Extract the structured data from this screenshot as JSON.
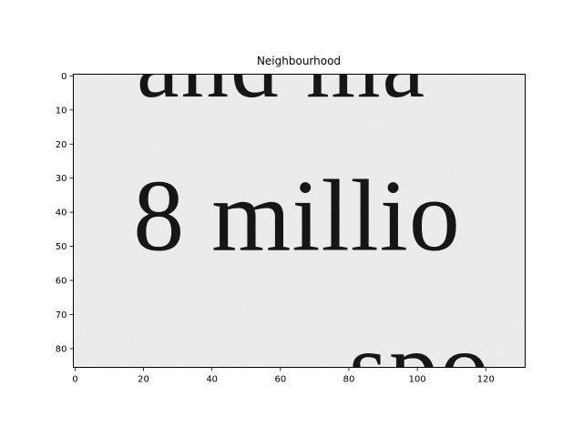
{
  "chart_data": {
    "type": "heatmap",
    "title": "Neighbourhood",
    "xlabel": "",
    "ylabel": "",
    "xlim": [
      -0.5,
      131.5
    ],
    "ylim": [
      85.5,
      -0.5
    ],
    "xticks": [
      0,
      20,
      40,
      60,
      80,
      100,
      120
    ],
    "yticks": [
      0,
      10,
      20,
      30,
      40,
      50,
      60,
      70,
      80
    ],
    "grid": false,
    "colormap": "gray",
    "image_content": {
      "description_text_lines": [
        {
          "text": "and ma",
          "baseline_row": 6,
          "x_start": 18
        },
        {
          "text": "8 millio",
          "baseline_row": 51,
          "x_start": 17
        },
        {
          "text": "spo",
          "baseline_row": 95,
          "x_start": 80
        }
      ]
    }
  }
}
